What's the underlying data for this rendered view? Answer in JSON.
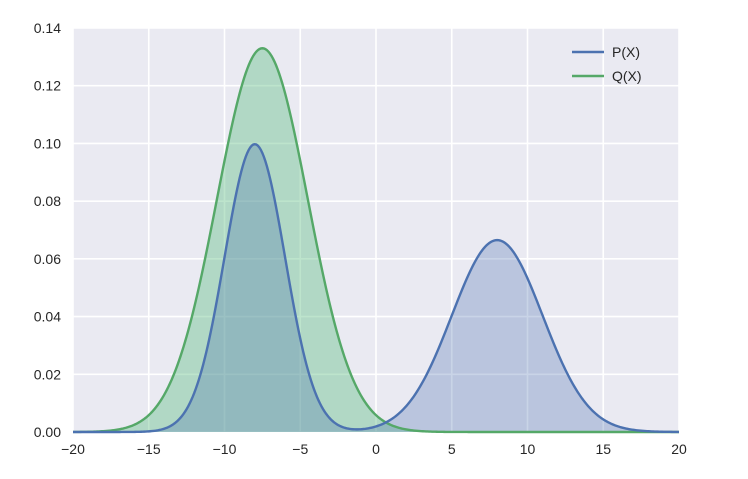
{
  "chart_data": {
    "type": "area",
    "title": "",
    "xlabel": "",
    "ylabel": "",
    "xlim": [
      -20,
      20
    ],
    "ylim": [
      0,
      0.14
    ],
    "x_ticks": [
      -20,
      -15,
      -10,
      -5,
      0,
      5,
      10,
      15,
      20
    ],
    "x_tick_labels": [
      "−20",
      "−15",
      "−10",
      "−5",
      "0",
      "5",
      "10",
      "15",
      "20"
    ],
    "y_ticks": [
      0,
      0.02,
      0.04,
      0.06,
      0.08,
      0.1,
      0.12,
      0.14
    ],
    "y_tick_labels": [
      "0.00",
      "0.02",
      "0.04",
      "0.06",
      "0.08",
      "0.10",
      "0.12",
      "0.14"
    ],
    "grid": true,
    "legend_position": "top-right",
    "background": "#eaeaf2",
    "series": [
      {
        "name": "P(X)",
        "color": "#4c72b0",
        "fill": "#4c72b0",
        "components": [
          {
            "weight": 0.5,
            "mean": -8,
            "std": 2
          },
          {
            "weight": 0.5,
            "mean": 8,
            "std": 3
          }
        ],
        "x": [
          -20,
          -15,
          -12,
          -10,
          -9,
          -8,
          -7,
          -6,
          -5,
          -4,
          -2,
          0,
          2,
          4,
          6,
          8,
          10,
          12,
          14,
          16,
          20
        ],
        "y": [
          0.0,
          0.0044,
          0.0135,
          0.0605,
          0.0883,
          0.0997,
          0.0882,
          0.0605,
          0.0325,
          0.0136,
          0.0013,
          0.0009,
          0.009,
          0.0273,
          0.0531,
          0.0665,
          0.0531,
          0.0273,
          0.009,
          0.0019,
          0.0
        ]
      },
      {
        "name": "Q(X)",
        "color": "#55a868",
        "fill": "#6cc48d",
        "components": [
          {
            "weight": 1.0,
            "mean": -7.5,
            "std": 3
          }
        ],
        "x": [
          -20,
          -16,
          -14,
          -12,
          -10,
          -9,
          -8,
          -7.5,
          -7,
          -6,
          -4,
          -2,
          0,
          2,
          4,
          8,
          20
        ],
        "y": [
          0.0001,
          0.0024,
          0.0125,
          0.0432,
          0.0941,
          0.1168,
          0.1312,
          0.133,
          0.1312,
          0.1168,
          0.0673,
          0.0249,
          0.0058,
          0.0009,
          0.0001,
          0.0,
          0.0
        ]
      }
    ]
  }
}
